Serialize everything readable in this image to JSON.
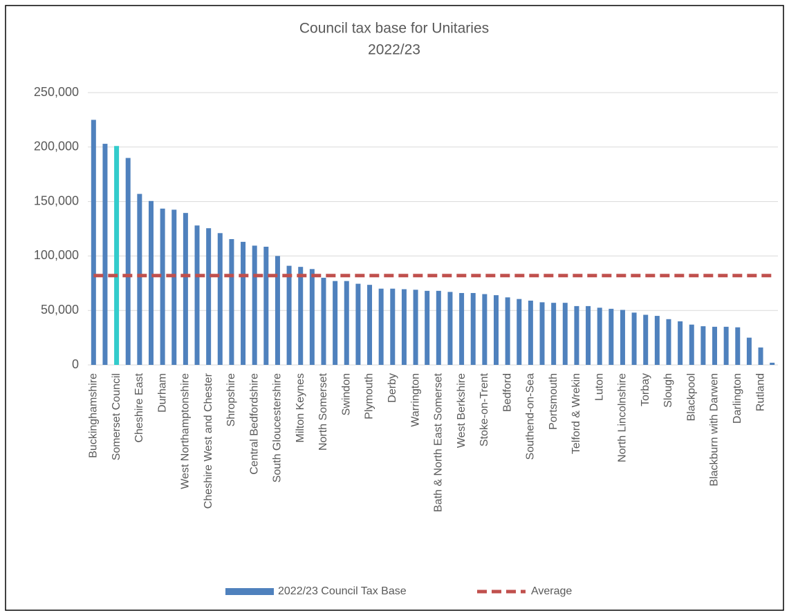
{
  "chart_data": {
    "type": "bar",
    "title": "Council tax base for Unitaries",
    "subtitle": "2022/23",
    "categories": [
      "Buckinghamshire",
      null,
      "Somerset Council",
      null,
      "Cheshire East",
      null,
      "Durham",
      null,
      "West Northamptonshire",
      null,
      "Cheshire West and Chester",
      null,
      "Shropshire",
      null,
      "Central Bedfordshire",
      null,
      "South Gloucestershire",
      null,
      "Milton Keynes",
      null,
      "North Somerset",
      null,
      "Swindon",
      null,
      "Plymouth",
      null,
      "Derby",
      null,
      "Warrington",
      null,
      "Bath & North East Somerset",
      null,
      "West Berkshire",
      null,
      "Stoke-on-Trent",
      null,
      "Bedford",
      null,
      "Southend-on-Sea",
      null,
      "Portsmouth",
      null,
      "Telford & Wrekin",
      null,
      "Luton",
      null,
      "North Lincolnshire",
      null,
      "Torbay",
      null,
      "Slough",
      null,
      "Blackpool",
      null,
      "Blackburn with Darwen",
      null,
      "Darlington",
      null,
      "Rutland",
      null
    ],
    "series": [
      {
        "name": "2022/23 Council Tax Base",
        "color": "#4f81bd",
        "highlight_index": 2,
        "highlight_color": "#33cccc",
        "values": [
          225000,
          203000,
          201000,
          190000,
          157000,
          150500,
          143500,
          142500,
          139500,
          128000,
          125500,
          121000,
          115500,
          113000,
          109500,
          108500,
          100000,
          91000,
          90000,
          88000,
          80000,
          77000,
          77000,
          74500,
          73500,
          70000,
          70000,
          69500,
          69000,
          68000,
          68000,
          67000,
          66000,
          66000,
          65000,
          64000,
          62000,
          60500,
          59000,
          57500,
          57000,
          57000,
          54000,
          54000,
          52500,
          51500,
          50500,
          48000,
          46000,
          45000,
          42000,
          40000,
          37000,
          35500,
          35000,
          35000,
          34500,
          25000,
          16000,
          2000
        ]
      },
      {
        "name": "Average",
        "type": "line",
        "dashed": true,
        "color": "#c0504d",
        "values": [
          82000,
          82000,
          82000,
          82000,
          82000,
          82000,
          82000,
          82000,
          82000,
          82000,
          82000,
          82000,
          82000,
          82000,
          82000,
          82000,
          82000,
          82000,
          82000,
          82000,
          82000,
          82000,
          82000,
          82000,
          82000,
          82000,
          82000,
          82000,
          82000,
          82000,
          82000,
          82000,
          82000,
          82000,
          82000,
          82000,
          82000,
          82000,
          82000,
          82000,
          82000,
          82000,
          82000,
          82000,
          82000,
          82000,
          82000,
          82000,
          82000,
          82000,
          82000,
          82000,
          82000,
          82000,
          82000,
          82000,
          82000,
          82000,
          82000,
          82000
        ]
      }
    ],
    "ylim": [
      0,
      250000
    ],
    "yticks": [
      0,
      {
        "value": 50000,
        "label": "50,000"
      },
      {
        "value": 100000,
        "label": "100,000"
      },
      {
        "value": 150000,
        "label": "150,000"
      },
      {
        "value": 200000,
        "label": "200,000"
      },
      {
        "value": 250000,
        "label": "250,000"
      }
    ],
    "grid": true,
    "legend": "bottom"
  }
}
